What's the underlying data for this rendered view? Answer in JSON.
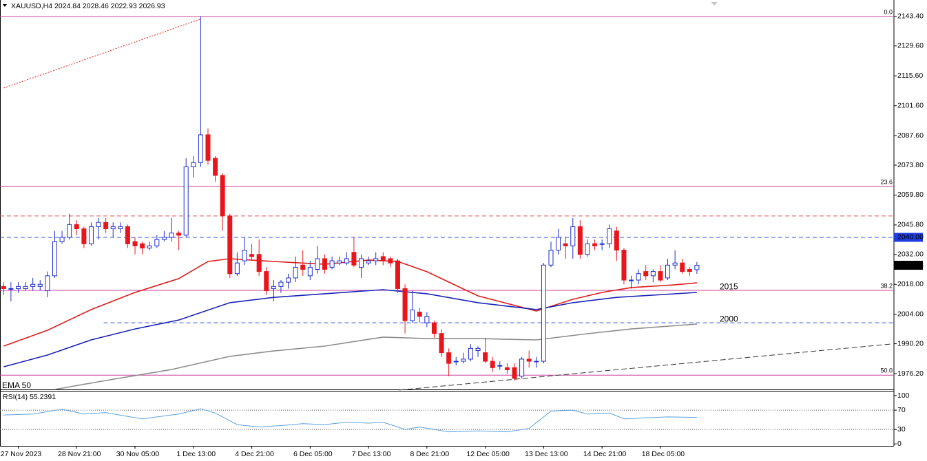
{
  "chart_data": {
    "type": "candlestick",
    "title": "XAUUSD,H4  2024.84 2028.46 2022.93 2026.93",
    "xlim": [
      -0.5,
      122
    ],
    "ylim": [
      1968.8,
      2151.1
    ],
    "yticks": [
      {
        "value": 2143.4,
        "label": "2143.40"
      },
      {
        "value": 2129.6,
        "label": "2129.60"
      },
      {
        "value": 2115.6,
        "label": "2115.60"
      },
      {
        "value": 2101.6,
        "label": "2101.60"
      },
      {
        "value": 2087.6,
        "label": "2087.60"
      },
      {
        "value": 2073.8,
        "label": "2073.80"
      },
      {
        "value": 2059.8,
        "label": "2059.80"
      },
      {
        "value": 2045.8,
        "label": "2045.80"
      },
      {
        "value": 2032,
        "label": "2032.00"
      },
      {
        "value": 2018,
        "label": "2018.00"
      },
      {
        "value": 2004,
        "label": "2004.00"
      },
      {
        "value": 1990.2,
        "label": "1990.20"
      },
      {
        "value": 1976.2,
        "label": "1976.20"
      }
    ],
    "xticks": [
      {
        "value": 2,
        "label": "27 Nov 2023"
      },
      {
        "value": 10,
        "label": "28 Nov 21:00"
      },
      {
        "value": 18,
        "label": "30 Nov 05:00"
      },
      {
        "value": 26,
        "label": "1 Dec 13:00"
      },
      {
        "value": 34,
        "label": "4 Dec 21:00"
      },
      {
        "value": 42,
        "label": "6 Dec 05:00"
      },
      {
        "value": 50,
        "label": "7 Dec 13:00"
      },
      {
        "value": 58,
        "label": "8 Dec 21:00"
      },
      {
        "value": 66,
        "label": "12 Dec 05:00"
      },
      {
        "value": 74,
        "label": "13 Dec 13:00"
      },
      {
        "value": 82,
        "label": "14 Dec 21:00"
      },
      {
        "value": 90,
        "label": "18 Dec 05:00"
      }
    ],
    "up_color": "#1e2cd0",
    "down_color": "#e8161c",
    "open": [
      2017,
      2016,
      2016,
      2016,
      2017,
      2017,
      2015,
      2022,
      2038,
      2040,
      2046,
      2044,
      2037,
      2045,
      2047,
      2044,
      2044,
      2045,
      2038,
      2037,
      2035,
      2036,
      2039,
      2040,
      2042,
      2041,
      2073,
      2075,
      2088,
      2077,
      2069,
      2050,
      2023,
      2029,
      2032,
      2032,
      2024,
      2016,
      2017,
      2019,
      2021,
      2027,
      2022,
      2025,
      2030,
      2026,
      2028,
      2028,
      2033,
      2026,
      2028,
      2029,
      2031,
      2030,
      2029,
      2016,
      2001,
      2005,
      2000,
      2000,
      1995,
      1986,
      1982,
      1982,
      1983,
      1987,
      1986,
      1982,
      1980,
      1979,
      1979,
      1975,
      1983,
      1982,
      1982,
      2027,
      2034,
      2037,
      2036,
      2045,
      2032,
      2037,
      2037,
      2037,
      2043,
      2034,
      2020,
      2020,
      2024,
      2022,
      2024,
      2021,
      2027,
      2028,
      2025,
      2024.84
    ],
    "high": [
      2019,
      2019,
      2019,
      2019,
      2021,
      2020,
      2024,
      2043,
      2043,
      2051,
      2048,
      2045,
      2047,
      2049,
      2049,
      2047,
      2047,
      2046,
      2040,
      2038,
      2038,
      2041,
      2043,
      2049,
      2043,
      2077,
      2078,
      2143.4,
      2091,
      2078,
      2070,
      2051,
      2033,
      2040,
      2037,
      2039,
      2026,
      2020,
      2020,
      2023,
      2031,
      2034,
      2029,
      2036,
      2032,
      2031,
      2031,
      2033,
      2040,
      2032,
      2031,
      2033,
      2033,
      2031,
      2030,
      2018,
      2015,
      2007,
      2005,
      2001,
      1997,
      1988,
      1984,
      1986,
      1990,
      1989,
      1993,
      1984,
      1982,
      1981,
      1981,
      1984,
      1987,
      1984,
      2028,
      2038,
      2044,
      2040,
      2049,
      2048,
      2039,
      2039,
      2039,
      2046,
      2045,
      2035,
      2022,
      2025,
      2027,
      2025,
      2027,
      2030,
      2034,
      2030,
      2026,
      2028.46
    ],
    "low": [
      2013,
      2010,
      2014,
      2015,
      2015,
      2015,
      2012,
      2021,
      2037,
      2039,
      2041,
      2035,
      2036,
      2039,
      2042,
      2040,
      2042,
      2035,
      2032,
      2032,
      2034,
      2035,
      2038,
      2038,
      2034,
      2040,
      2068,
      2073,
      2074,
      2066,
      2043,
      2021,
      2022,
      2027,
      2029,
      2022,
      2013,
      2010,
      2014,
      2016,
      2019,
      2022,
      2020,
      2023,
      2023,
      2025,
      2027,
      2027,
      2026,
      2021,
      2027,
      2027,
      2027,
      2026,
      2014,
      1995,
      2000,
      2000,
      1998,
      1993,
      1984,
      1975,
      1980,
      1981,
      1982,
      1984,
      1981,
      1977,
      1978,
      1976,
      1973,
      1974,
      1979,
      1979,
      1981,
      2026,
      2032,
      2030,
      2030,
      2030,
      2031,
      2034,
      2034,
      2035,
      2029,
      2018,
      2016,
      2018,
      2020,
      2019,
      2019,
      2020,
      2025,
      2023,
      2022,
      2022.93
    ],
    "close": [
      2016,
      2016,
      2017,
      2017,
      2018,
      2018,
      2022,
      2038,
      2040,
      2046,
      2044,
      2037,
      2045,
      2047,
      2044,
      2045,
      2045,
      2037,
      2036,
      2035,
      2036,
      2039,
      2040,
      2042,
      2041,
      2073,
      2075,
      2088,
      2076,
      2069,
      2050,
      2023,
      2028,
      2034,
      2031,
      2024,
      2015,
      2017,
      2019,
      2021,
      2026,
      2025,
      2026,
      2030,
      2025,
      2029,
      2029,
      2030,
      2027,
      2030,
      2029,
      2030,
      2029,
      2028,
      2016,
      2001,
      2006,
      2003,
      2003,
      1995,
      1986,
      1981,
      1982,
      1983,
      1988,
      1988,
      1982,
      1979,
      1980,
      1978,
      1974,
      1983,
      1982,
      1982,
      2027,
      2034,
      2040,
      2036,
      2045,
      2032,
      2037,
      2036,
      2037,
      2044,
      2034,
      2020,
      2020,
      2023,
      2022,
      2024,
      2020,
      2027,
      2028,
      2024,
      2024,
      2026.93
    ],
    "ma_lines": [
      {
        "name": "EMA 50",
        "color": "#e01b1b",
        "x": [
          0,
          6,
          12,
          18,
          24,
          28,
          31,
          37,
          44,
          50,
          54,
          58,
          65,
          73,
          78,
          82,
          86,
          92,
          95
        ],
        "values": [
          1989.1,
          1996.5,
          2006.2,
          2014.2,
          2020.7,
          2028.7,
          2030,
          2028.7,
          2027.4,
          2029.4,
          2028.7,
          2023.9,
          2012.6,
          2005.5,
          2011,
          2014.2,
          2016.5,
          2017.8,
          2018.7
        ]
      },
      {
        "color": "#1a22b8",
        "x": [
          0,
          6,
          12,
          18,
          24,
          31,
          37,
          44,
          52,
          58,
          65,
          73,
          78,
          84,
          95
        ],
        "values": [
          1979.4,
          1984.9,
          1992,
          1997.1,
          2001.3,
          2009.4,
          2011.9,
          2013.6,
          2015.5,
          2013.6,
          2009.4,
          2006.2,
          2009.4,
          2011.9,
          2014.2
        ]
      },
      {
        "color": "#8c8c8c",
        "x": [
          7,
          14,
          23,
          31,
          37,
          44,
          52,
          58,
          65,
          73,
          80,
          86,
          95
        ],
        "values": [
          1968.8,
          1973,
          1978.1,
          1984.3,
          1986.8,
          1989.1,
          1993.3,
          1992.6,
          1992.6,
          1992,
          1994.9,
          1997.1,
          1999.4
        ]
      }
    ],
    "fib_levels": [
      {
        "value": 2143.4,
        "label": "0.0"
      },
      {
        "value": 2063.8,
        "label": "23.6"
      },
      {
        "value": 2015.2,
        "label": "38.2"
      },
      {
        "value": 1975.5,
        "label": "50.0"
      }
    ],
    "fib_color": "#c8409c",
    "hlines": [
      {
        "value": 2050,
        "color": "#e05050",
        "x_start": -0.5
      },
      {
        "value": 2040,
        "color": "#3a55e0",
        "x_start": -0.5
      },
      {
        "value": 2000,
        "color": "#3a55e0",
        "x_start": 13.7
      }
    ],
    "price_notes": [
      2015,
      2000
    ],
    "price_note_color": "#e01b1b",
    "price_boxes": [
      {
        "value": 2040,
        "label": "2040.00",
        "color": "#1e3ce0"
      },
      {
        "value": 2026.93,
        "label": "2026.93",
        "color": "#000000"
      }
    ],
    "trend_lines": [
      {
        "x": [
          0,
          26.9
        ],
        "values": [
          2109.9,
          2142.1
        ],
        "color": "#e01b1b",
        "dash": "2,2"
      },
      {
        "x": [
          54.2,
          121.7
        ],
        "values": [
          1968.5,
          1990.1
        ],
        "color": "#333333",
        "dash": "8,4"
      }
    ],
    "rsi": {
      "title": "RSI(14) 55.2391",
      "color": "#5aa0e0",
      "ylim": [
        -4,
        110
      ],
      "yticks": [
        100,
        70,
        30,
        0
      ],
      "levels": [
        70,
        30
      ],
      "x": [
        0,
        4,
        6,
        8,
        11,
        14,
        17,
        19,
        22,
        24,
        27,
        29,
        32,
        35,
        38,
        41,
        44,
        47,
        50,
        52,
        55,
        57,
        61,
        65,
        69,
        72,
        75,
        78,
        80,
        83,
        85,
        88,
        91,
        95
      ],
      "values": [
        60,
        62,
        67,
        72,
        62,
        65,
        57,
        52,
        58,
        62,
        73,
        64,
        40,
        35,
        38,
        42,
        40,
        45,
        43,
        45,
        30,
        35,
        25,
        27,
        25,
        32,
        68,
        70,
        62,
        64,
        52,
        54,
        56,
        55
      ]
    }
  }
}
